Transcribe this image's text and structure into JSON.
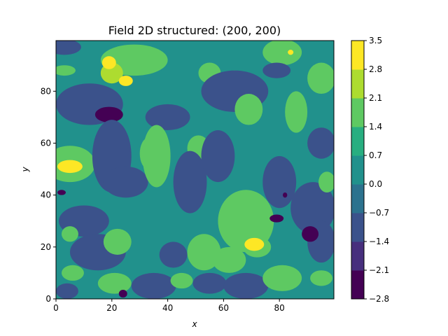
{
  "chart_data": {
    "type": "heatmap",
    "title": "Field 2D structured: (200, 200)",
    "xlabel": "x",
    "ylabel": "y",
    "xlim": [
      0,
      99.5
    ],
    "ylim": [
      0,
      99.5
    ],
    "x_ticks": [
      0,
      20,
      40,
      60,
      80
    ],
    "y_ticks": [
      0,
      20,
      40,
      60,
      80
    ],
    "x_tick_labels": [
      "0",
      "20",
      "40",
      "60",
      "80"
    ],
    "y_tick_labels": [
      "0",
      "20",
      "40",
      "60",
      "80"
    ],
    "colormap": "viridis",
    "colorbar": {
      "vmin": -2.8,
      "vmax": 3.5,
      "ticks": [
        3.5,
        2.8,
        2.1,
        1.4,
        0.7,
        0.0,
        -0.7,
        -1.4,
        -2.1,
        -2.8
      ],
      "tick_labels": [
        "3.5",
        "2.8",
        "2.1",
        "1.4",
        "0.7",
        "0.0",
        "−0.7",
        "−1.4",
        "−2.1",
        "−2.8"
      ],
      "levels": [
        {
          "range": [
            -2.8,
            -2.1
          ],
          "color": "#440154"
        },
        {
          "range": [
            -2.1,
            -1.4
          ],
          "color": "#472f7d"
        },
        {
          "range": [
            -1.4,
            -0.7
          ],
          "color": "#3b528b"
        },
        {
          "range": [
            -0.7,
            0.0
          ],
          "color": "#2c728e"
        },
        {
          "range": [
            0.0,
            0.7
          ],
          "color": "#21918c"
        },
        {
          "range": [
            0.7,
            1.4
          ],
          "color": "#28ae80"
        },
        {
          "range": [
            1.4,
            2.1
          ],
          "color": "#5ec962"
        },
        {
          "range": [
            2.1,
            2.8
          ],
          "color": "#addc30"
        },
        {
          "range": [
            2.8,
            3.5
          ],
          "color": "#fde725"
        }
      ]
    },
    "background_level_value": 0.35,
    "regions": [
      {
        "cx": 3,
        "cy": 97,
        "rx": 6,
        "ry": 3,
        "value": -1.0
      },
      {
        "cx": 12,
        "cy": 75,
        "rx": 12,
        "ry": 8,
        "value": -1.0
      },
      {
        "cx": 28,
        "cy": 92,
        "rx": 12,
        "ry": 6,
        "value": 1.7
      },
      {
        "cx": 20,
        "cy": 87,
        "rx": 4,
        "ry": 4,
        "value": 2.3
      },
      {
        "cx": 25,
        "cy": 84,
        "rx": 2.5,
        "ry": 2,
        "value": 3.2
      },
      {
        "cx": 19,
        "cy": 91,
        "rx": 2.5,
        "ry": 2.5,
        "value": 3.2
      },
      {
        "cx": 3,
        "cy": 88,
        "rx": 4,
        "ry": 2,
        "value": 1.7
      },
      {
        "cx": 19,
        "cy": 71,
        "rx": 5,
        "ry": 3,
        "value": -2.5
      },
      {
        "cx": 5,
        "cy": 52,
        "rx": 9,
        "ry": 7,
        "value": 1.7
      },
      {
        "cx": 5,
        "cy": 51,
        "rx": 4.5,
        "ry": 2.5,
        "value": 3.2
      },
      {
        "cx": 2,
        "cy": 41,
        "rx": 1.5,
        "ry": 1,
        "value": -2.5
      },
      {
        "cx": 20,
        "cy": 55,
        "rx": 7,
        "ry": 14,
        "value": -1.0
      },
      {
        "cx": 10,
        "cy": 30,
        "rx": 9,
        "ry": 6,
        "value": -1.0
      },
      {
        "cx": 25,
        "cy": 45,
        "rx": 8,
        "ry": 6,
        "value": -1.0
      },
      {
        "cx": 15,
        "cy": 18,
        "rx": 10,
        "ry": 7,
        "value": -1.0
      },
      {
        "cx": 22,
        "cy": 22,
        "rx": 5,
        "ry": 5,
        "value": 1.7
      },
      {
        "cx": 5,
        "cy": 25,
        "rx": 3,
        "ry": 3,
        "value": 1.7
      },
      {
        "cx": 6,
        "cy": 10,
        "rx": 4,
        "ry": 3,
        "value": 1.7
      },
      {
        "cx": 21,
        "cy": 6,
        "rx": 6,
        "ry": 4,
        "value": 1.7
      },
      {
        "cx": 4,
        "cy": 3,
        "rx": 4,
        "ry": 3,
        "value": -1.0
      },
      {
        "cx": 24,
        "cy": 2,
        "rx": 1.5,
        "ry": 1.5,
        "value": -2.5
      },
      {
        "cx": 35,
        "cy": 5,
        "rx": 8,
        "ry": 5,
        "value": -1.0
      },
      {
        "cx": 42,
        "cy": 17,
        "rx": 5,
        "ry": 5,
        "value": -1.0
      },
      {
        "cx": 45,
        "cy": 7,
        "rx": 4,
        "ry": 3,
        "value": 1.7
      },
      {
        "cx": 40,
        "cy": 70,
        "rx": 8,
        "ry": 5,
        "value": -1.0
      },
      {
        "cx": 36,
        "cy": 55,
        "rx": 5,
        "ry": 12,
        "value": 1.7
      },
      {
        "cx": 33,
        "cy": 56,
        "rx": 3,
        "ry": 6,
        "value": 1.7
      },
      {
        "cx": 51,
        "cy": 58,
        "rx": 4,
        "ry": 5,
        "value": 1.7
      },
      {
        "cx": 48,
        "cy": 45,
        "rx": 6,
        "ry": 12,
        "value": -1.0
      },
      {
        "cx": 58,
        "cy": 55,
        "rx": 6,
        "ry": 10,
        "value": -1.0
      },
      {
        "cx": 55,
        "cy": 87,
        "rx": 4,
        "ry": 4,
        "value": 1.7
      },
      {
        "cx": 64,
        "cy": 85,
        "rx": 3,
        "ry": 3,
        "value": 1.7
      },
      {
        "cx": 64,
        "cy": 80,
        "rx": 12,
        "ry": 8,
        "value": -1.0
      },
      {
        "cx": 69,
        "cy": 73,
        "rx": 5,
        "ry": 6,
        "value": 1.7
      },
      {
        "cx": 68,
        "cy": 30,
        "rx": 10,
        "ry": 12,
        "value": 1.7
      },
      {
        "cx": 72,
        "cy": 20,
        "rx": 5,
        "ry": 4,
        "value": 1.7
      },
      {
        "cx": 71,
        "cy": 21,
        "rx": 3.5,
        "ry": 2.5,
        "value": 3.2
      },
      {
        "cx": 62,
        "cy": 15,
        "rx": 6,
        "ry": 5,
        "value": 1.7
      },
      {
        "cx": 53,
        "cy": 18,
        "rx": 6,
        "ry": 7,
        "value": 1.7
      },
      {
        "cx": 55,
        "cy": 6,
        "rx": 6,
        "ry": 4,
        "value": -1.0
      },
      {
        "cx": 68,
        "cy": 5,
        "rx": 8,
        "ry": 5,
        "value": -1.0
      },
      {
        "cx": 81,
        "cy": 8,
        "rx": 7,
        "ry": 5,
        "value": 1.7
      },
      {
        "cx": 95,
        "cy": 8,
        "rx": 4,
        "ry": 3,
        "value": 1.7
      },
      {
        "cx": 80,
        "cy": 45,
        "rx": 6,
        "ry": 10,
        "value": -1.0
      },
      {
        "cx": 92,
        "cy": 35,
        "rx": 8,
        "ry": 10,
        "value": -1.0
      },
      {
        "cx": 95,
        "cy": 22,
        "rx": 5,
        "ry": 8,
        "value": -1.0
      },
      {
        "cx": 91,
        "cy": 25,
        "rx": 3,
        "ry": 3,
        "value": -2.5
      },
      {
        "cx": 79,
        "cy": 31,
        "rx": 2.5,
        "ry": 1.5,
        "value": -2.5
      },
      {
        "cx": 82,
        "cy": 40,
        "rx": 0.8,
        "ry": 1,
        "value": -2.5
      },
      {
        "cx": 86,
        "cy": 72,
        "rx": 4,
        "ry": 8,
        "value": 1.7
      },
      {
        "cx": 95,
        "cy": 85,
        "rx": 5,
        "ry": 6,
        "value": 1.7
      },
      {
        "cx": 81,
        "cy": 95,
        "rx": 7,
        "ry": 5,
        "value": 1.7
      },
      {
        "cx": 84,
        "cy": 95,
        "rx": 1,
        "ry": 1,
        "value": 3.2
      },
      {
        "cx": 79,
        "cy": 88,
        "rx": 5,
        "ry": 3,
        "value": -1.0
      },
      {
        "cx": 97,
        "cy": 45,
        "rx": 3,
        "ry": 4,
        "value": 1.7
      },
      {
        "cx": 95,
        "cy": 60,
        "rx": 5,
        "ry": 6,
        "value": -1.0
      }
    ]
  }
}
